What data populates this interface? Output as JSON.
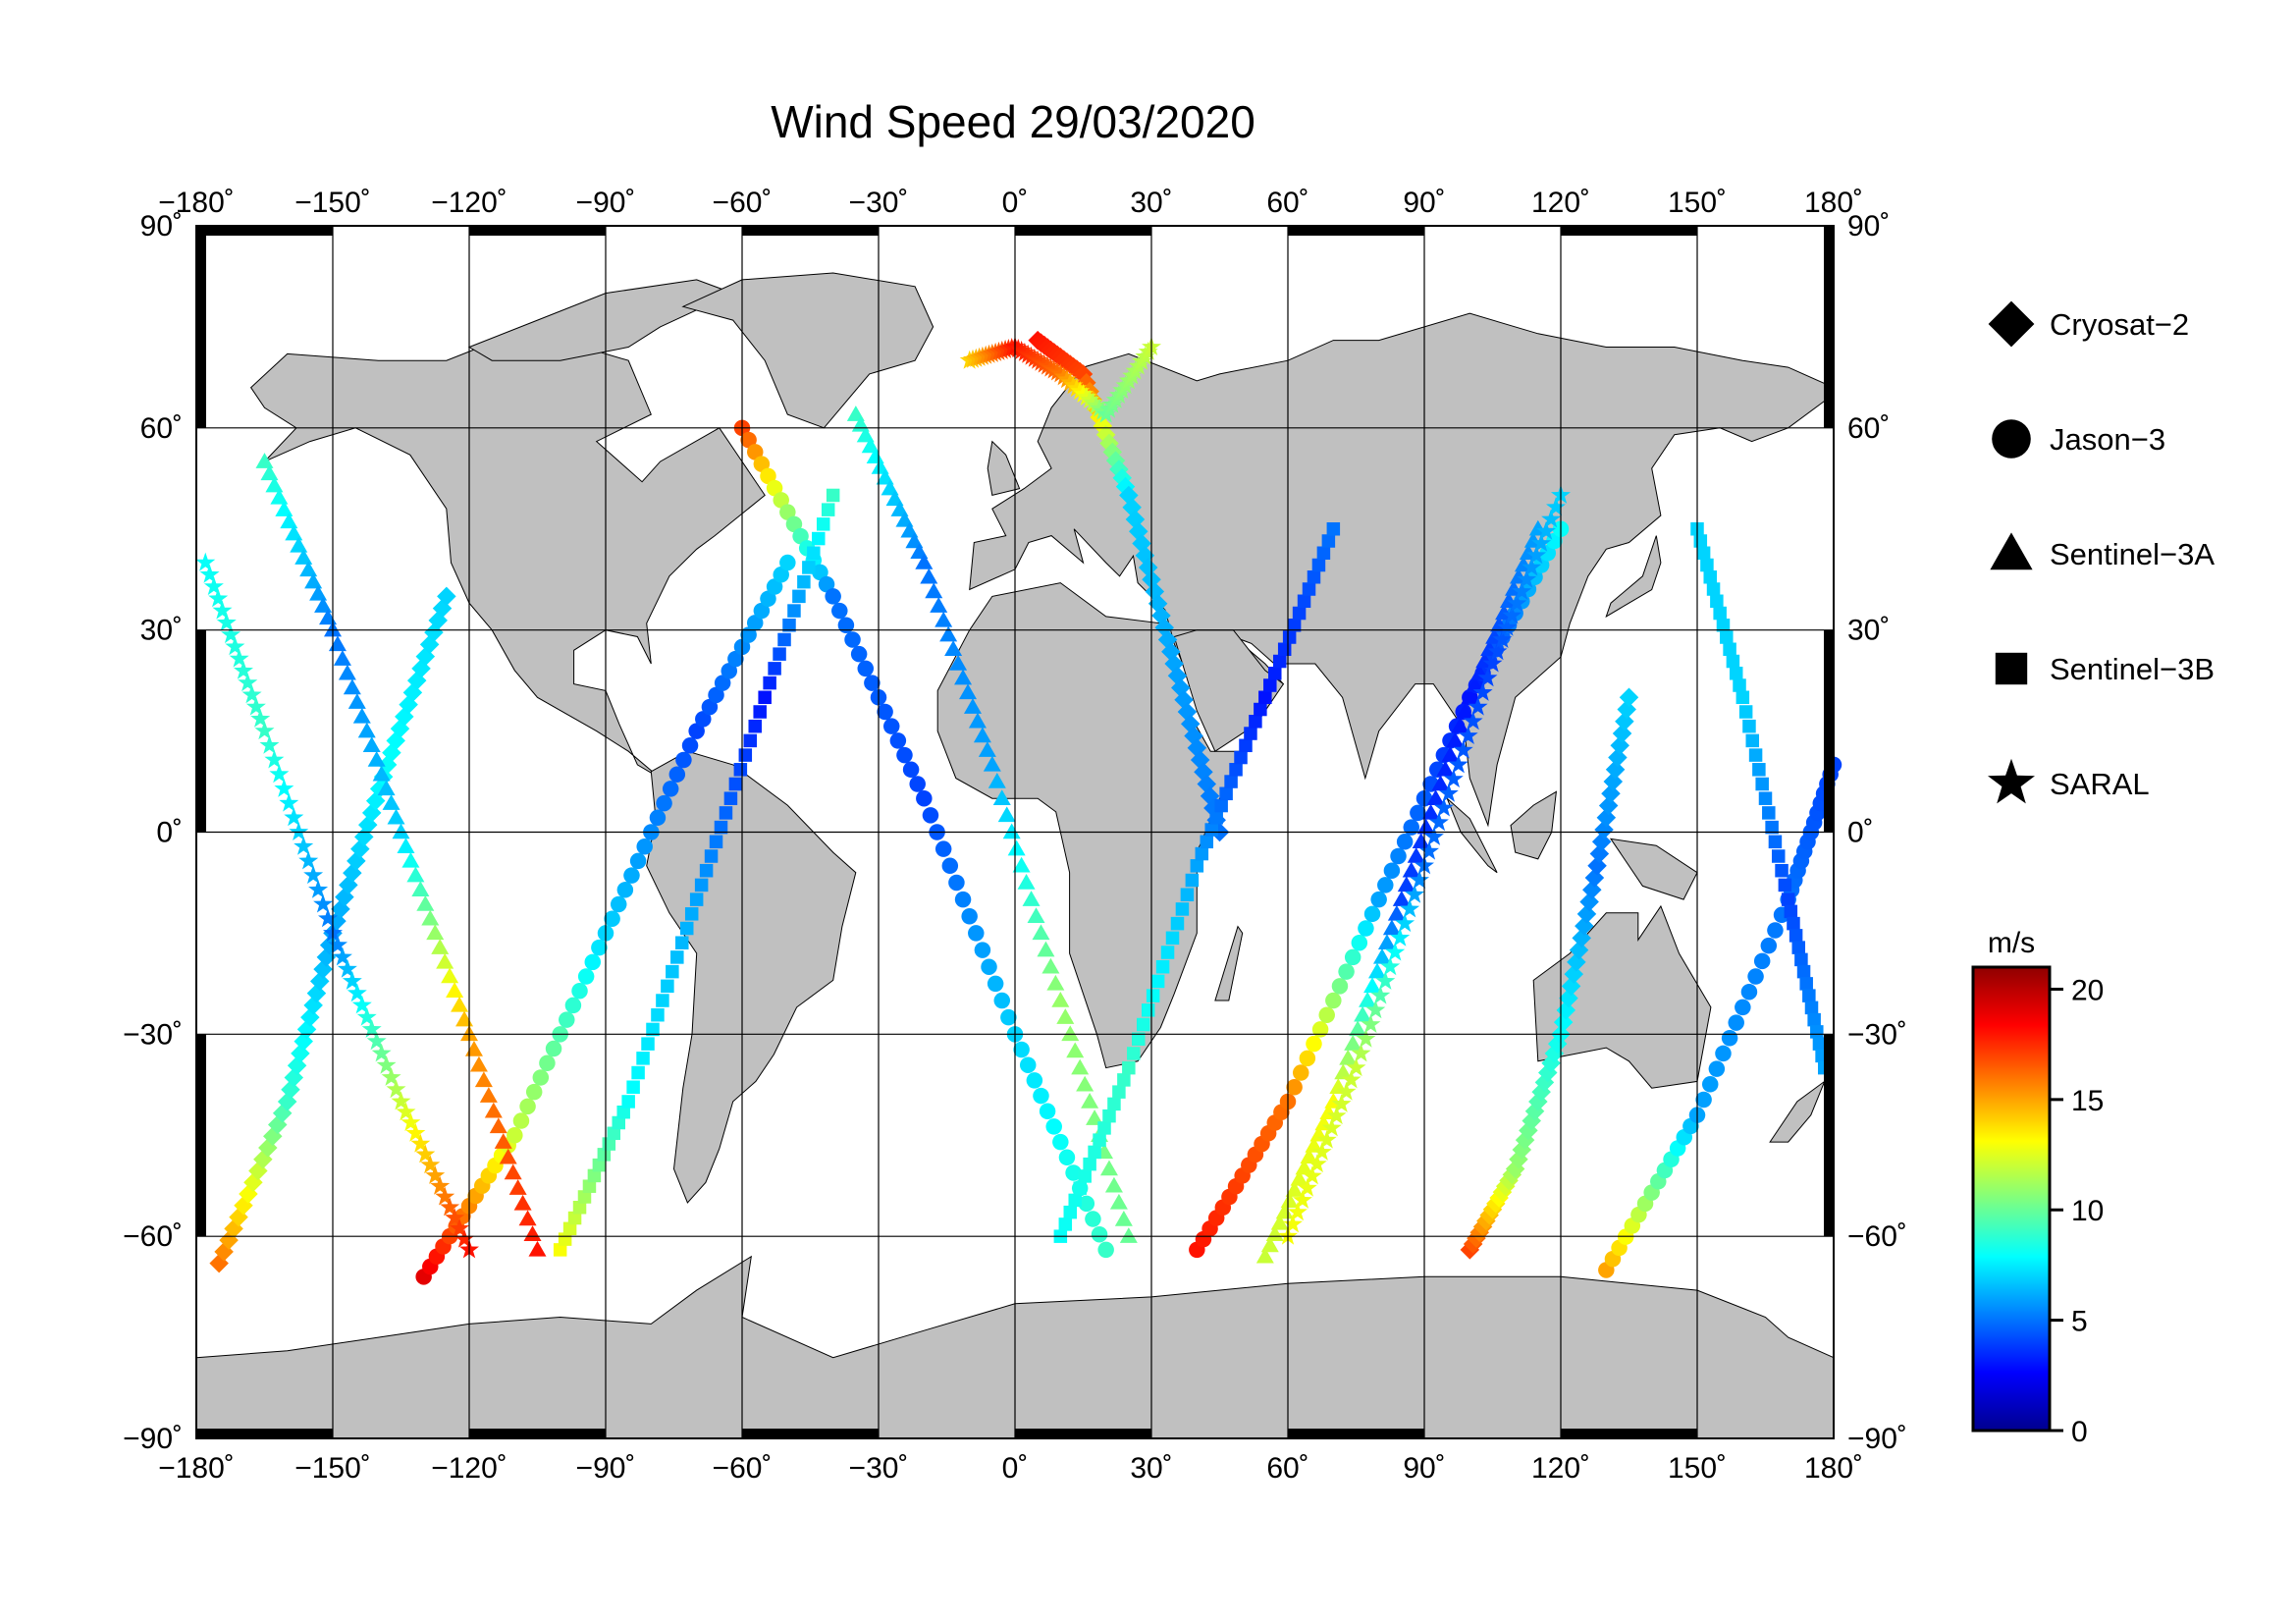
{
  "title": "Wind Speed 29/03/2020",
  "map": {
    "lon_range": [
      -180,
      180
    ],
    "lat_range": [
      -90,
      90
    ],
    "lon_ticks": [
      {
        "value": -180,
        "label": "−180˚"
      },
      {
        "value": -150,
        "label": "−150˚"
      },
      {
        "value": -120,
        "label": "−120˚"
      },
      {
        "value": -90,
        "label": "−90˚"
      },
      {
        "value": -60,
        "label": "−60˚"
      },
      {
        "value": -30,
        "label": "−30˚"
      },
      {
        "value": 0,
        "label": "0˚"
      },
      {
        "value": 30,
        "label": "30˚"
      },
      {
        "value": 60,
        "label": "60˚"
      },
      {
        "value": 90,
        "label": "90˚"
      },
      {
        "value": 120,
        "label": "120˚"
      },
      {
        "value": 150,
        "label": "150˚"
      },
      {
        "value": 180,
        "label": "180˚"
      }
    ],
    "lat_ticks": [
      {
        "value": 90,
        "label": "90˚"
      },
      {
        "value": 60,
        "label": "60˚"
      },
      {
        "value": 30,
        "label": "30˚"
      },
      {
        "value": 0,
        "label": "0˚"
      },
      {
        "value": -30,
        "label": "−30˚"
      },
      {
        "value": -60,
        "label": "−60˚"
      },
      {
        "value": -90,
        "label": "−90˚"
      }
    ],
    "grid": true,
    "land_color": "#c0c0c0",
    "ocean_color": "#ffffff"
  },
  "legend": [
    {
      "label": "Cryosat−2",
      "marker": "diamond"
    },
    {
      "label": "Jason−3",
      "marker": "circle"
    },
    {
      "label": "Sentinel−3A",
      "marker": "triangle"
    },
    {
      "label": "Sentinel−3B",
      "marker": "square"
    },
    {
      "label": "SARAL",
      "marker": "star"
    }
  ],
  "colorbar": {
    "unit": "m/s",
    "min": 0,
    "max": 21,
    "ticks": [
      {
        "value": 0,
        "label": "0"
      },
      {
        "value": 5,
        "label": "5"
      },
      {
        "value": 10,
        "label": "10"
      },
      {
        "value": 15,
        "label": "15"
      },
      {
        "value": 20,
        "label": "20"
      }
    ],
    "colors": [
      "#00008f",
      "#0000ff",
      "#007fff",
      "#00ffff",
      "#7fff7f",
      "#ffff00",
      "#ff7f00",
      "#ff0000",
      "#8f0000"
    ]
  },
  "chart_data": {
    "type": "scatter",
    "title": "Wind Speed 29/03/2020",
    "xlabel": "",
    "ylabel": "",
    "xlim": [
      -180,
      180
    ],
    "ylim": [
      -90,
      90
    ],
    "value_unit": "m/s",
    "series": [
      {
        "name": "Cryosat−2",
        "marker": "diamond",
        "tracks": [
          {
            "lon": [
              -175,
              -160,
              -150,
              -138,
              -125
            ],
            "lat": [
              -64,
              -40,
              -15,
              10,
              35
            ],
            "speed": [
              16,
              9,
              6,
              8,
              7
            ]
          },
          {
            "lon": [
              5,
              15,
              25,
              35,
              45
            ],
            "lat": [
              73,
              68,
              50,
              25,
              0
            ],
            "speed": [
              18,
              17,
              7,
              6,
              5
            ]
          },
          {
            "lon": [
              100,
              110,
              120,
              128,
              135
            ],
            "lat": [
              -62,
              -50,
              -30,
              -5,
              20
            ],
            "speed": [
              17,
              11,
              8,
              5,
              7
            ]
          }
        ]
      },
      {
        "name": "Jason−3",
        "marker": "circle",
        "tracks": [
          {
            "lon": [
              -130,
              -110,
              -90,
              -70,
              -50
            ],
            "lat": [
              -66,
              -45,
              -15,
              15,
              40
            ],
            "speed": [
              19,
              12,
              7,
              4,
              7
            ]
          },
          {
            "lon": [
              -60,
              -40,
              -20,
              0,
              20
            ],
            "lat": [
              60,
              35,
              5,
              -30,
              -62
            ],
            "speed": [
              17,
              5,
              4,
              7,
              9
            ]
          },
          {
            "lon": [
              40,
              60,
              80,
              100,
              120
            ],
            "lat": [
              -62,
              -40,
              -10,
              20,
              45
            ],
            "speed": [
              18,
              16,
              6,
              3,
              8
            ]
          },
          {
            "lon": [
              130,
              150,
              170,
              180
            ],
            "lat": [
              -65,
              -42,
              -10,
              10
            ],
            "speed": [
              15,
              6,
              5,
              4
            ]
          }
        ]
      },
      {
        "name": "Sentinel−3A",
        "marker": "triangle",
        "tracks": [
          {
            "lon": [
              -165,
              -150,
              -135,
              -120,
              -105
            ],
            "lat": [
              55,
              30,
              0,
              -30,
              -62
            ],
            "speed": [
              9,
              5,
              7,
              15,
              18
            ]
          },
          {
            "lon": [
              -35,
              -20,
              -5,
              10,
              25
            ],
            "lat": [
              62,
              40,
              10,
              -25,
              -60
            ],
            "speed": [
              9,
              5,
              6,
              11,
              10
            ]
          },
          {
            "lon": [
              55,
              70,
              85,
              100,
              115
            ],
            "lat": [
              -63,
              -40,
              -10,
              20,
              45
            ],
            "speed": [
              12,
              13,
              4,
              3,
              6
            ]
          }
        ]
      },
      {
        "name": "Sentinel−3B",
        "marker": "square",
        "tracks": [
          {
            "lon": [
              -100,
              -85,
              -70,
              -55,
              -40
            ],
            "lat": [
              -62,
              -40,
              -10,
              20,
              50
            ],
            "speed": [
              13,
              8,
              6,
              3,
              9
            ]
          },
          {
            "lon": [
              10,
              25,
              40,
              55,
              70
            ],
            "lat": [
              -60,
              -35,
              -5,
              20,
              45
            ],
            "speed": [
              8,
              9,
              6,
              3,
              5
            ]
          },
          {
            "lon": [
              150,
              160,
              170,
              178
            ],
            "lat": [
              45,
              20,
              -10,
              -35
            ],
            "speed": [
              7,
              7,
              4,
              6
            ]
          }
        ]
      },
      {
        "name": "SARAL",
        "marker": "star",
        "tracks": [
          {
            "lon": [
              -178,
              -165,
              -150,
              -135,
              -120
            ],
            "lat": [
              40,
              15,
              -15,
              -40,
              -62
            ],
            "speed": [
              8,
              9,
              5,
              12,
              18
            ]
          },
          {
            "lon": [
              -10,
              0,
              10,
              20,
              30
            ],
            "lat": [
              70,
              72,
              68,
              62,
              72
            ],
            "speed": [
              14,
              18,
              16,
              10,
              12
            ]
          },
          {
            "lon": [
              60,
              75,
              90,
              105,
              120
            ],
            "lat": [
              -60,
              -35,
              -5,
              25,
              50
            ],
            "speed": [
              13,
              12,
              5,
              4,
              7
            ]
          }
        ]
      }
    ]
  }
}
